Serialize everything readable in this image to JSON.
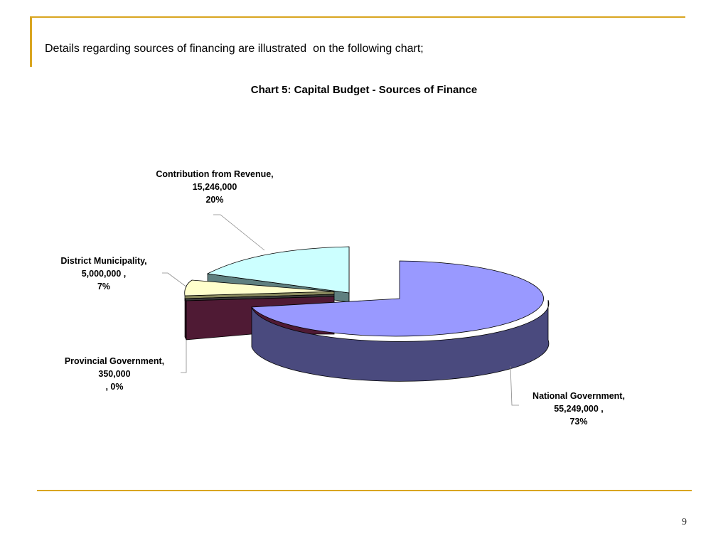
{
  "slide": {
    "intro_text": "Details regarding sources of financing are illustrated  on the following chart;",
    "page_number": "9",
    "accent_color": "#d9a520"
  },
  "chart_data": {
    "type": "pie",
    "style": "3d-exploded",
    "title": "Chart 5: Capital Budget - Sources of Finance",
    "slices": [
      {
        "name": "National Government",
        "value": 55249000,
        "percent": 73,
        "label_lines": [
          "National Government,",
          "55,249,000 ,",
          "73%"
        ],
        "color_top": "#9999ff",
        "color_side": "#4a4a7e"
      },
      {
        "name": "Provincial Government",
        "value": 350000,
        "percent": 0,
        "label_lines": [
          "Provincial Government,",
          "350,000",
          ", 0%"
        ],
        "color_top": "#3a3a3a",
        "color_side": "#1e1e1e"
      },
      {
        "name": "District Municipality",
        "value": 5000000,
        "percent": 7,
        "label_lines": [
          "District Municipality,",
          "5,000,000 ,",
          "7%"
        ],
        "color_top": "#ffffcc",
        "color_side": "#8a8a5e"
      },
      {
        "name": "Contribution from Revenue",
        "value": 15246000,
        "percent": 20,
        "label_lines": [
          "Contribution from Revenue,",
          "15,246,000",
          "20%"
        ],
        "color_top": "#ccffff",
        "color_side": "#5f8080"
      }
    ],
    "wedge_face_color": "#4f1a34",
    "legend": "none"
  }
}
